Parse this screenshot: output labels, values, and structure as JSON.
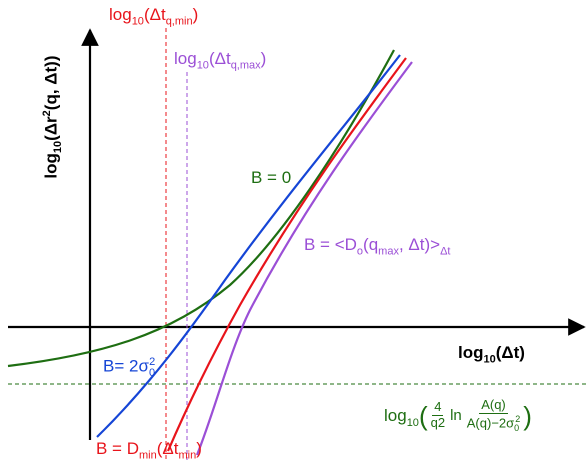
{
  "labels": {
    "dt_min": {
      "prefix": "log",
      "base": "10",
      "open": "(Δt",
      "sub": "q,min",
      "close": ")"
    },
    "dt_max": {
      "prefix": "log",
      "base": "10",
      "open": "(Δt",
      "sub": "q,max",
      "close": ")"
    },
    "y_axis": {
      "prefix": "log",
      "base": "10",
      "body": "(Δr",
      "sup": "2",
      "tail": "(q, Δt))"
    },
    "x_axis": {
      "prefix": "log",
      "base": "10",
      "body": "(Δt)"
    },
    "b_zero": "B = 0",
    "b_do": {
      "head": "B = <D",
      "sub1": "o",
      "mid": "(q",
      "sub2": "max",
      "tail": ", Δt)>",
      "sub3": "Δt"
    },
    "b_sigma": {
      "head": "B= 2σ",
      "sub": "0",
      "sup": "2"
    },
    "b_dmin": {
      "head": "B = D",
      "sub1": "min",
      "mid": "(Δt",
      "sub2": "min",
      "tail": ")"
    },
    "green_formula": {
      "prefix": "log",
      "base": "10",
      "frac1_num": "4",
      "frac1_den": "q2",
      "ln": "ln",
      "frac2_num": "A(q)",
      "frac2_den_head": "A(q)−2σ",
      "frac2_den_sub": "0",
      "frac2_den_sup": "2"
    }
  },
  "colors": {
    "axes": "#000000",
    "green": "#1e6e12",
    "blue": "#1545d6",
    "red": "#e8141b",
    "purple": "#9b4fd6"
  }
}
